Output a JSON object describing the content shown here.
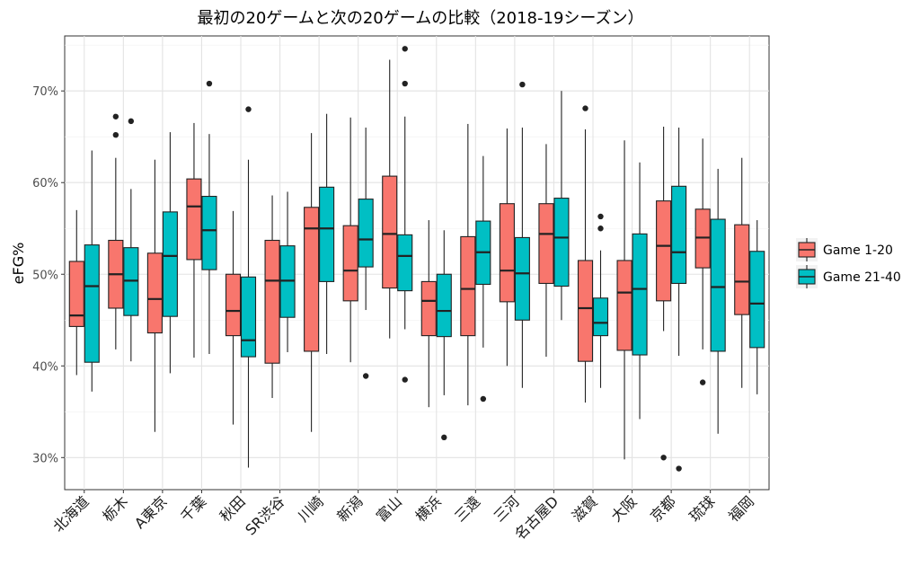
{
  "chart_data": {
    "type": "boxplot",
    "title": "最初の20ゲームと次の20ゲームの比較（2018-19シーズン）",
    "xlabel": "",
    "ylabel": "eFG%",
    "ylim": [
      26.5,
      76
    ],
    "yticks": [
      30,
      40,
      50,
      60,
      70
    ],
    "ytick_labels": [
      "30%",
      "40%",
      "50%",
      "60%",
      "70%"
    ],
    "grid": true,
    "legend_position": "right",
    "categories": [
      "北海道",
      "栃木",
      "A東京",
      "千葉",
      "秋田",
      "SR渋谷",
      "川崎",
      "新潟",
      "富山",
      "横浜",
      "三遠",
      "三河",
      "名古屋D",
      "滋賀",
      "大阪",
      "京都",
      "琉球",
      "福岡"
    ],
    "series": [
      {
        "name": "Game 1-20",
        "color": "#f8766d",
        "boxes": [
          {
            "whislo": 39.0,
            "q1": 44.3,
            "med": 45.5,
            "q3": 51.4,
            "whishi": 57.0,
            "outliers": []
          },
          {
            "whislo": 41.8,
            "q1": 46.3,
            "med": 50.0,
            "q3": 53.7,
            "whishi": 62.7,
            "outliers": [
              65.2,
              67.2
            ]
          },
          {
            "whislo": 32.8,
            "q1": 43.6,
            "med": 47.3,
            "q3": 52.3,
            "whishi": 62.5,
            "outliers": []
          },
          {
            "whislo": 40.9,
            "q1": 51.6,
            "med": 57.4,
            "q3": 60.4,
            "whishi": 66.5,
            "outliers": []
          },
          {
            "whislo": 33.6,
            "q1": 43.3,
            "med": 46.0,
            "q3": 50.0,
            "whishi": 56.9,
            "outliers": []
          },
          {
            "whislo": 36.5,
            "q1": 40.3,
            "med": 49.3,
            "q3": 53.7,
            "whishi": 58.6,
            "outliers": []
          },
          {
            "whislo": 32.8,
            "q1": 41.6,
            "med": 55.0,
            "q3": 57.3,
            "whishi": 65.4,
            "outliers": []
          },
          {
            "whislo": 40.4,
            "q1": 47.1,
            "med": 50.4,
            "q3": 55.3,
            "whishi": 67.1,
            "outliers": []
          },
          {
            "whislo": 43.0,
            "q1": 48.5,
            "med": 54.4,
            "q3": 60.7,
            "whishi": 73.4,
            "outliers": []
          },
          {
            "whislo": 35.5,
            "q1": 43.3,
            "med": 47.1,
            "q3": 49.2,
            "whishi": 55.9,
            "outliers": []
          },
          {
            "whislo": 35.7,
            "q1": 43.3,
            "med": 48.4,
            "q3": 54.1,
            "whishi": 66.4,
            "outliers": []
          },
          {
            "whislo": 40.0,
            "q1": 47.0,
            "med": 50.4,
            "q3": 57.7,
            "whishi": 65.9,
            "outliers": []
          },
          {
            "whislo": 41.0,
            "q1": 49.0,
            "med": 54.4,
            "q3": 57.7,
            "whishi": 64.2,
            "outliers": []
          },
          {
            "whislo": 36.0,
            "q1": 40.5,
            "med": 46.3,
            "q3": 51.5,
            "whishi": 65.8,
            "outliers": [
              68.1
            ]
          },
          {
            "whislo": 29.8,
            "q1": 41.7,
            "med": 48.0,
            "q3": 51.5,
            "whishi": 64.6,
            "outliers": []
          },
          {
            "whislo": 43.8,
            "q1": 47.1,
            "med": 53.1,
            "q3": 58.0,
            "whishi": 66.1,
            "outliers": [
              30.0
            ]
          },
          {
            "whislo": 41.8,
            "q1": 50.7,
            "med": 54.0,
            "q3": 57.1,
            "whishi": 64.8,
            "outliers": [
              38.2
            ]
          },
          {
            "whislo": 37.6,
            "q1": 45.6,
            "med": 49.2,
            "q3": 55.4,
            "whishi": 62.7,
            "outliers": []
          }
        ]
      },
      {
        "name": "Game 21-40",
        "color": "#00bfc4",
        "boxes": [
          {
            "whislo": 37.2,
            "q1": 40.4,
            "med": 48.7,
            "q3": 53.2,
            "whishi": 63.5,
            "outliers": []
          },
          {
            "whislo": 40.5,
            "q1": 45.5,
            "med": 49.3,
            "q3": 52.9,
            "whishi": 59.3,
            "outliers": [
              66.7
            ]
          },
          {
            "whislo": 39.2,
            "q1": 45.4,
            "med": 52.0,
            "q3": 56.8,
            "whishi": 65.5,
            "outliers": []
          },
          {
            "whislo": 41.3,
            "q1": 50.5,
            "med": 54.8,
            "q3": 58.5,
            "whishi": 65.3,
            "outliers": [
              70.8
            ]
          },
          {
            "whislo": 28.9,
            "q1": 41.0,
            "med": 42.8,
            "q3": 49.7,
            "whishi": 62.5,
            "outliers": [
              68.0
            ]
          },
          {
            "whislo": 41.5,
            "q1": 45.3,
            "med": 49.3,
            "q3": 53.1,
            "whishi": 59.0,
            "outliers": []
          },
          {
            "whislo": 41.3,
            "q1": 49.2,
            "med": 55.0,
            "q3": 59.5,
            "whishi": 67.5,
            "outliers": []
          },
          {
            "whislo": 46.1,
            "q1": 50.8,
            "med": 53.8,
            "q3": 58.2,
            "whishi": 66.0,
            "outliers": [
              38.9
            ]
          },
          {
            "whislo": 44.0,
            "q1": 48.2,
            "med": 52.0,
            "q3": 54.3,
            "whishi": 67.2,
            "outliers": [
              38.5,
              70.8,
              74.6
            ]
          },
          {
            "whislo": 36.8,
            "q1": 43.2,
            "med": 46.0,
            "q3": 50.0,
            "whishi": 54.8,
            "outliers": [
              32.2
            ]
          },
          {
            "whislo": 42.0,
            "q1": 48.9,
            "med": 52.4,
            "q3": 55.8,
            "whishi": 62.9,
            "outliers": [
              36.4
            ]
          },
          {
            "whislo": 37.6,
            "q1": 45.0,
            "med": 50.1,
            "q3": 54.0,
            "whishi": 66.0,
            "outliers": [
              70.7
            ]
          },
          {
            "whislo": 45.0,
            "q1": 48.7,
            "med": 54.0,
            "q3": 58.3,
            "whishi": 70.0,
            "outliers": []
          },
          {
            "whislo": 37.6,
            "q1": 43.3,
            "med": 44.7,
            "q3": 47.4,
            "whishi": 52.6,
            "outliers": [
              55.0,
              56.3
            ]
          },
          {
            "whislo": 34.2,
            "q1": 41.2,
            "med": 48.4,
            "q3": 54.4,
            "whishi": 62.2,
            "outliers": []
          },
          {
            "whislo": 41.1,
            "q1": 49.0,
            "med": 52.4,
            "q3": 59.6,
            "whishi": 66.0,
            "outliers": [
              28.8
            ]
          },
          {
            "whislo": 32.6,
            "q1": 41.6,
            "med": 48.6,
            "q3": 56.0,
            "whishi": 61.5,
            "outliers": []
          },
          {
            "whislo": 36.9,
            "q1": 42.0,
            "med": 46.8,
            "q3": 52.5,
            "whishi": 55.9,
            "outliers": []
          }
        ]
      }
    ]
  }
}
